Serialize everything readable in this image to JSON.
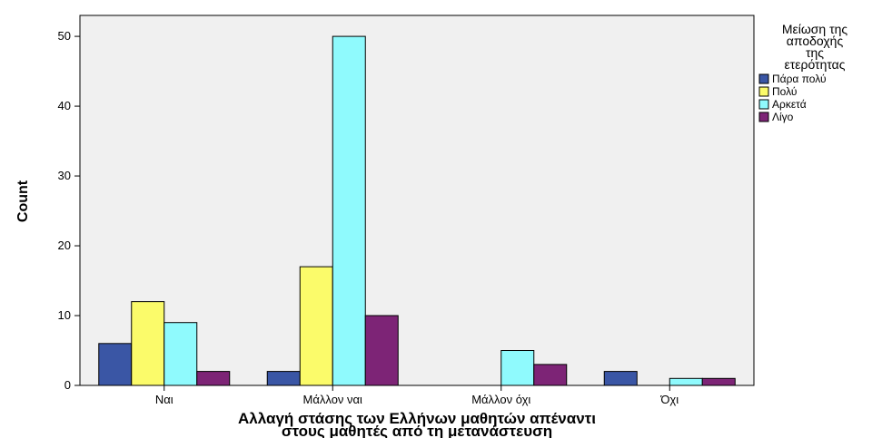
{
  "chart_data": {
    "type": "bar",
    "categories": [
      "Ναι",
      "Μάλλον ναι",
      "Μάλλον όχι",
      "Όχι"
    ],
    "series": [
      {
        "name": "Πάρα πολύ",
        "color": "#3a56a5",
        "values": [
          6,
          2,
          0,
          2
        ]
      },
      {
        "name": "Πολύ",
        "color": "#fbfb6a",
        "values": [
          12,
          17,
          0,
          0
        ]
      },
      {
        "name": "Αρκετά",
        "color": "#8ffafd",
        "values": [
          9,
          50,
          5,
          1
        ]
      },
      {
        "name": "Λίγο",
        "color": "#7d2476",
        "values": [
          2,
          10,
          3,
          1
        ]
      }
    ],
    "title": "",
    "xlabel_lines": [
      "Αλλαγή στάσης των Ελλήνων μαθητών απέναντι",
      "στους μαθητές από τη μετανάστευση"
    ],
    "ylabel": "Count",
    "ylim": [
      0,
      53
    ],
    "yticks": [
      0,
      10,
      20,
      30,
      40,
      50
    ],
    "grid": false,
    "legend": {
      "title_lines": [
        "Μείωση της",
        "αποδοχής",
        "της",
        "ετερότητας"
      ],
      "placement": "right"
    },
    "plot_background": "#f0f0f0"
  }
}
